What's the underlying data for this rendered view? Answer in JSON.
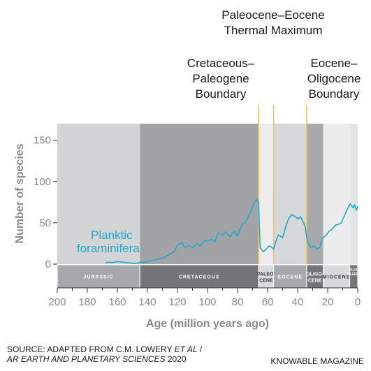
{
  "chart_data": {
    "type": "line",
    "xlabel": "Age (million years ago)",
    "ylabel": "Number of species",
    "xlim": [
      200,
      0
    ],
    "ylim": [
      0,
      170
    ],
    "x_ticks": [
      200,
      180,
      160,
      140,
      120,
      100,
      80,
      60,
      40,
      20,
      0
    ],
    "y_ticks": [
      0,
      50,
      100,
      150
    ],
    "series": [
      {
        "name": "Planktic foraminifera",
        "color": "#1fa8c9",
        "x": [
          168,
          163,
          160,
          155,
          150,
          147,
          145,
          140,
          135,
          130,
          127,
          125,
          122,
          120,
          117,
          115,
          112,
          110,
          107,
          105,
          102,
          100,
          97,
          95,
          93,
          90,
          88,
          85,
          82,
          80,
          77,
          75,
          72,
          70,
          68,
          67,
          66.5,
          66,
          65,
          63,
          61,
          59,
          57,
          56,
          55,
          53,
          50,
          48,
          46,
          44,
          42,
          40,
          38,
          36,
          35,
          34,
          33,
          31,
          29,
          27,
          25,
          24,
          23,
          21,
          19,
          17,
          15,
          13,
          11,
          9,
          7,
          6,
          5,
          3,
          2,
          1,
          0
        ],
        "values": [
          2,
          2,
          3,
          2,
          1,
          1,
          2,
          3,
          5,
          7,
          10,
          12,
          16,
          23,
          26,
          20,
          22,
          20,
          25,
          22,
          28,
          28,
          30,
          27,
          38,
          35,
          39,
          33,
          40,
          34,
          48,
          50,
          60,
          70,
          77,
          78,
          76,
          75,
          20,
          15,
          18,
          22,
          20,
          18,
          25,
          35,
          32,
          45,
          55,
          60,
          58,
          55,
          57,
          50,
          45,
          33,
          25,
          20,
          22,
          18,
          21,
          30,
          32,
          35,
          40,
          42,
          47,
          48,
          50,
          58,
          66,
          70,
          73,
          68,
          72,
          65,
          70
        ]
      }
    ],
    "annotations": [
      {
        "lines": [
          "Cretaceous–",
          "Paleogene",
          "Boundary"
        ],
        "x": 66
      },
      {
        "lines": [
          "Paleocene–Eocene",
          "Thermal Maximum"
        ],
        "x": 56
      },
      {
        "lines": [
          "Eocene–",
          "Oligocene",
          "Boundary"
        ],
        "x": 34
      }
    ],
    "bands": [
      {
        "from": 200,
        "to": 145,
        "color": "#d3d4d6"
      },
      {
        "from": 145,
        "to": 66,
        "color": "#a2a3a6"
      },
      {
        "from": 66,
        "to": 56,
        "color": "#ececed"
      },
      {
        "from": 56,
        "to": 34,
        "color": "#d6d7d9"
      },
      {
        "from": 34,
        "to": 23,
        "color": "#a8a9ac"
      },
      {
        "from": 23,
        "to": 5.3,
        "color": "#ececed"
      },
      {
        "from": 5.3,
        "to": 0,
        "color": "#e3e4e5"
      }
    ],
    "periods": [
      {
        "label": "JURASSIC",
        "from": 200,
        "to": 145,
        "fill": "#a7a8ab",
        "text": "#ffffff"
      },
      {
        "label": "CRETACEOUS",
        "from": 145,
        "to": 66,
        "fill": "#747578",
        "text": "#ffffff"
      },
      {
        "label": "PALEO- CENE",
        "from": 66,
        "to": 56,
        "fill": "#d8d9db",
        "text": "#3a3a3a"
      },
      {
        "label": "EOCENE",
        "from": 56,
        "to": 34,
        "fill": "#a7a8ab",
        "text": "#ffffff"
      },
      {
        "label": "OLIGO- CENE",
        "from": 34,
        "to": 23,
        "fill": "#747578",
        "text": "#ffffff"
      },
      {
        "label": "MIOCENE",
        "from": 23,
        "to": 5.3,
        "fill": "#d8d9db",
        "text": "#3a3a3a"
      },
      {
        "label": "PLIO- PLEIST.",
        "from": 5.3,
        "to": 0,
        "fill": "#747578",
        "text": "#ffffff"
      }
    ]
  },
  "footer": {
    "source_line1_prefix": "SOURCE: ADAPTED FROM C.M. LOWERY ",
    "source_line1_italic": "ET AL",
    "source_line1_suffix": " /",
    "source_line2_italic": "AR EARTH AND PLANETARY SCIENCES",
    "source_line2_suffix": " 2020",
    "credit": "KNOWABLE MAGAZINE"
  },
  "colors": {
    "annotation_line": "#f3c24f",
    "series_line": "#1fa8c9",
    "axis_text": "#8a8a8a"
  }
}
